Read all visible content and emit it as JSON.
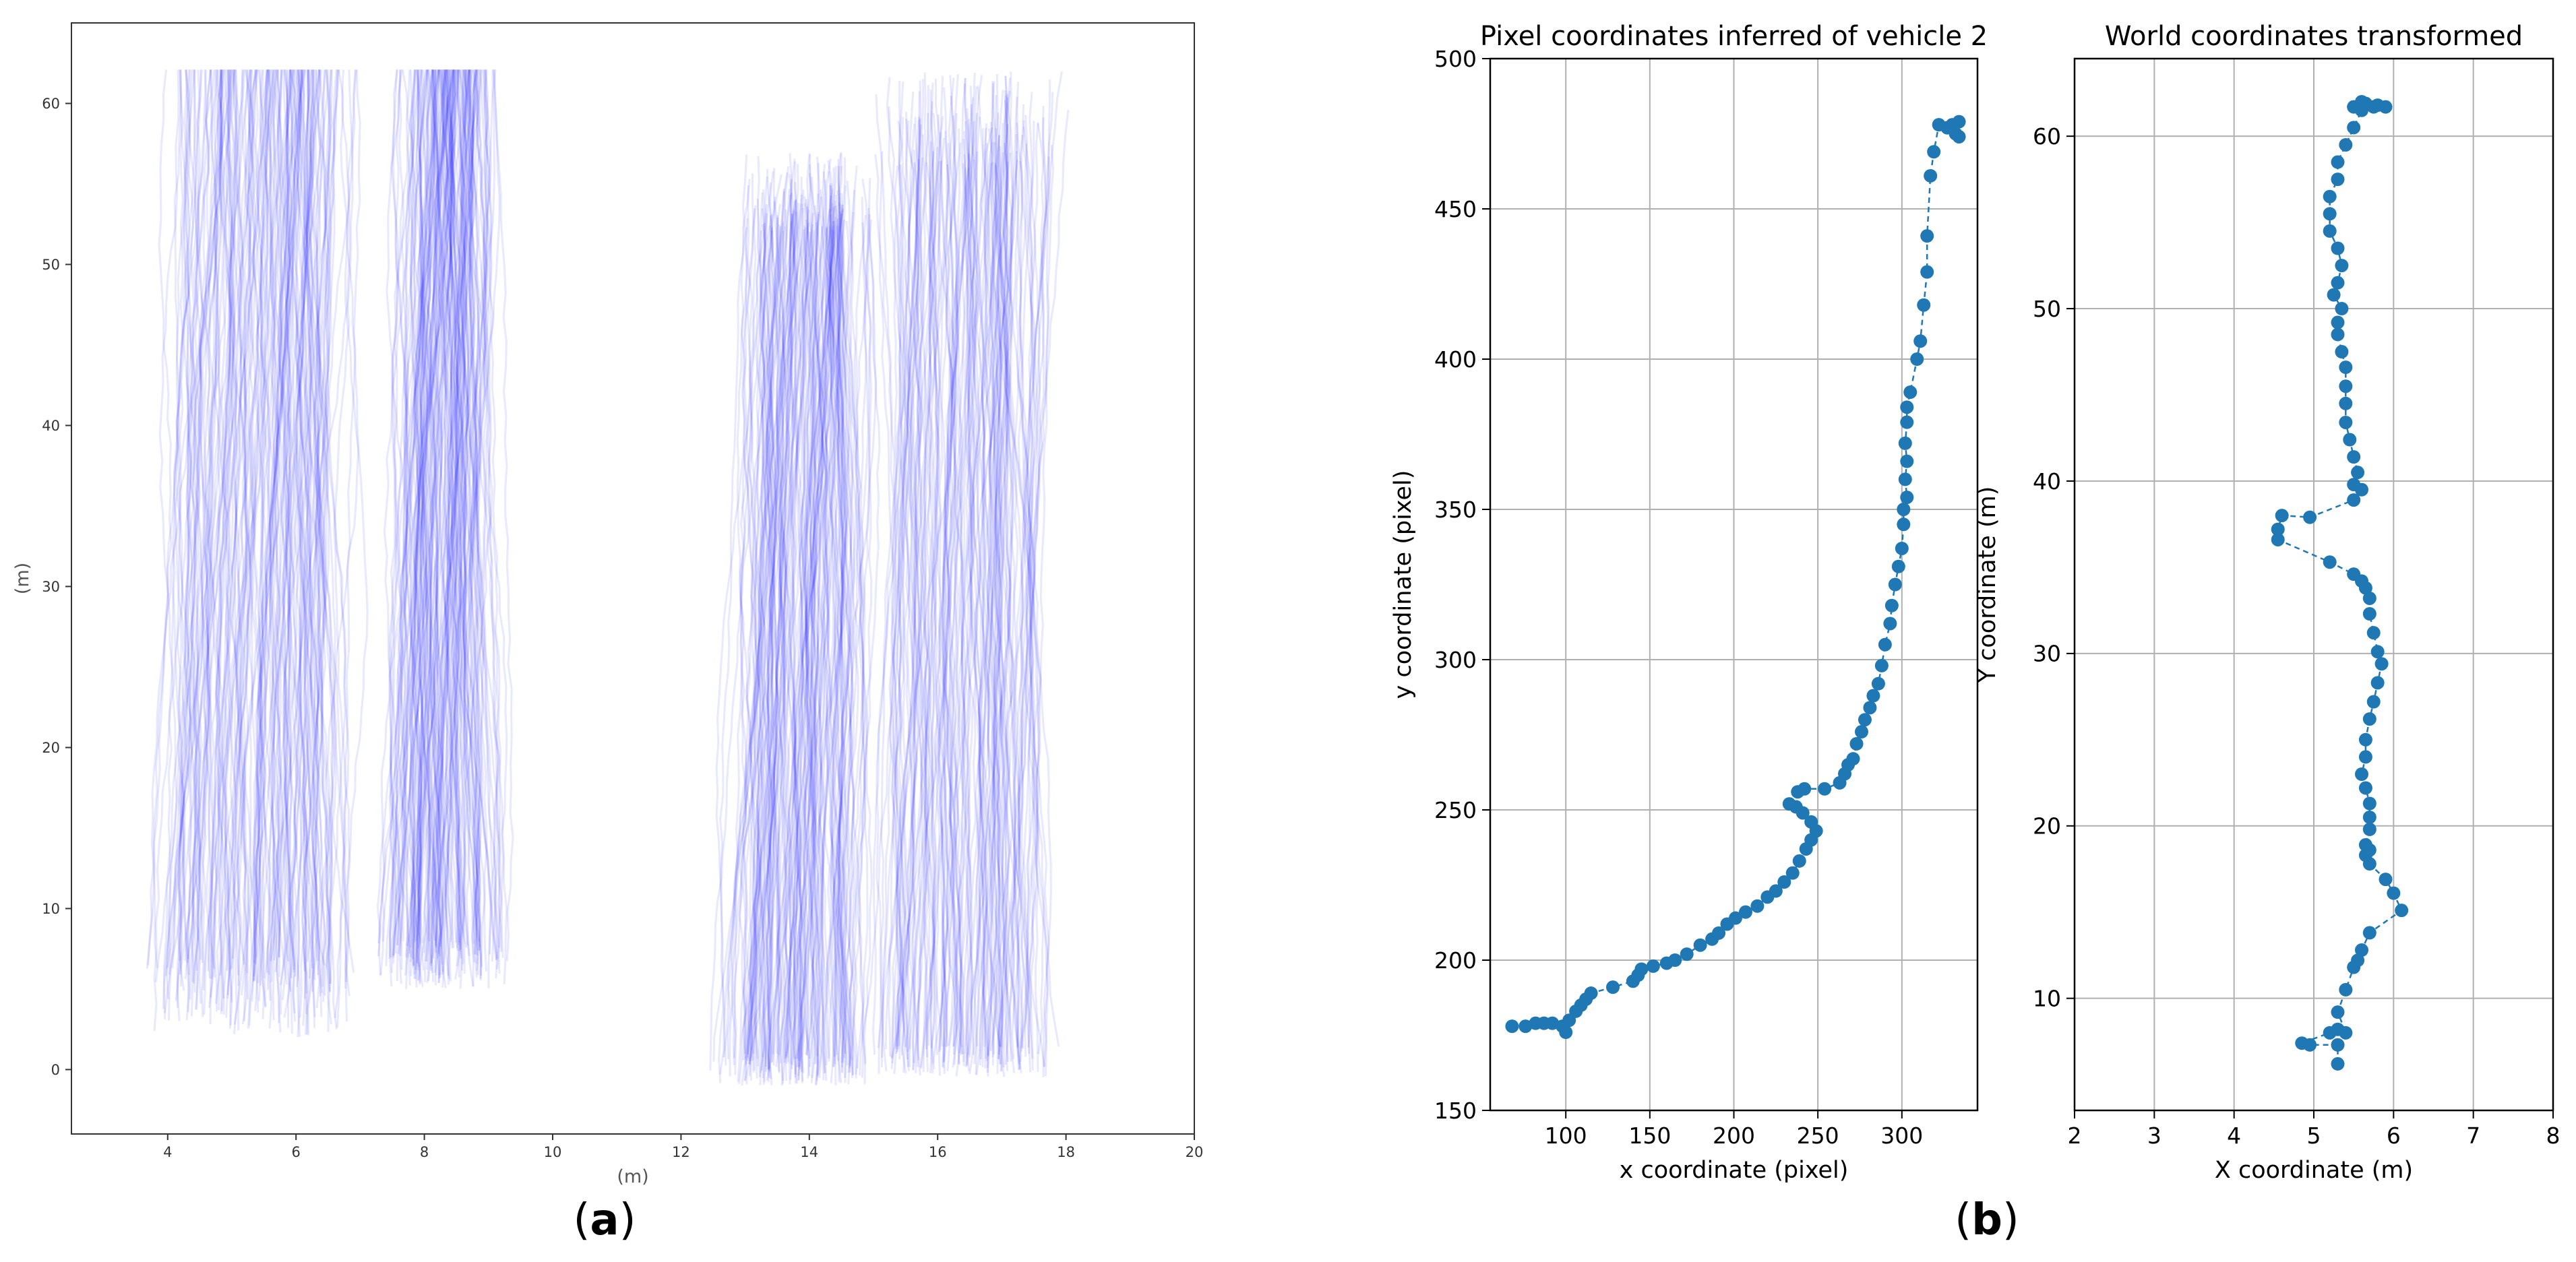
{
  "figure": {
    "panel_a_label": "a",
    "panel_b_label": "b"
  },
  "chart_data": [
    {
      "id": "a",
      "type": "line",
      "title": "",
      "xlabel": "(m)",
      "ylabel": "(m)",
      "xlim": [
        2.5,
        20
      ],
      "ylim": [
        -4,
        65
      ],
      "xticks": [
        4,
        6,
        8,
        10,
        12,
        14,
        16,
        18,
        20
      ],
      "yticks": [
        0,
        10,
        20,
        30,
        40,
        50,
        60
      ],
      "grid": false,
      "line_color": "#0000ff",
      "line_alpha": 0.09,
      "note": "dense bundle of vehicle trajectories in four lanes",
      "lanes": [
        {
          "name": "lane-1",
          "x_start_range": [
            3.6,
            6.9
          ],
          "y_start_range": [
            2,
            7
          ],
          "y_end": 62.1,
          "x_end_range": [
            4.0,
            7.0
          ],
          "count": 170
        },
        {
          "name": "lane-2",
          "x_start_range": [
            7.2,
            9.3
          ],
          "y_start_range": [
            5,
            8
          ],
          "y_end": 62.1,
          "x_end_range": [
            7.6,
            9.2
          ],
          "count": 150
        },
        {
          "name": "lane-3",
          "x_start_range": [
            12.5,
            15.0
          ],
          "y_start_range": [
            -1,
            1
          ],
          "y_end_range": [
            52,
            57
          ],
          "x_end_range": [
            12.9,
            15.1
          ],
          "count": 160
        },
        {
          "name": "lane-4",
          "x_start_range": [
            14.9,
            17.9
          ],
          "y_start_range": [
            -0.5,
            1.5
          ],
          "y_end_range": [
            56,
            62
          ],
          "x_end_range": [
            15.0,
            18.1
          ],
          "count": 150
        }
      ]
    },
    {
      "id": "b-pixel",
      "type": "scatter",
      "title": "Pixel coordinates inferred of vehicle 2",
      "xlabel": "x coordinate (pixel)",
      "ylabel": "y coordinate (pixel)",
      "xlim": [
        55,
        345
      ],
      "ylim": [
        150,
        500
      ],
      "xticks": [
        100,
        150,
        200,
        250,
        300
      ],
      "yticks": [
        150,
        200,
        250,
        300,
        350,
        400,
        450,
        500
      ],
      "grid": true,
      "color": "#1f77b4",
      "connect": "dashed",
      "points": [
        [
          68,
          178
        ],
        [
          76,
          178
        ],
        [
          82,
          179
        ],
        [
          87,
          179
        ],
        [
          92,
          179
        ],
        [
          98,
          178
        ],
        [
          100,
          176
        ],
        [
          102,
          180
        ],
        [
          106,
          183
        ],
        [
          109,
          185
        ],
        [
          112,
          187
        ],
        [
          115,
          189
        ],
        [
          128,
          191
        ],
        [
          140,
          193
        ],
        [
          143,
          195
        ],
        [
          145,
          197
        ],
        [
          152,
          198
        ],
        [
          160,
          199
        ],
        [
          165,
          200
        ],
        [
          172,
          202
        ],
        [
          180,
          205
        ],
        [
          187,
          207
        ],
        [
          191,
          209
        ],
        [
          196,
          212
        ],
        [
          201,
          214
        ],
        [
          207,
          216
        ],
        [
          214,
          218
        ],
        [
          220,
          221
        ],
        [
          225,
          223
        ],
        [
          230,
          226
        ],
        [
          235,
          229
        ],
        [
          239,
          233
        ],
        [
          243,
          237
        ],
        [
          246,
          240
        ],
        [
          249,
          243
        ],
        [
          246,
          246
        ],
        [
          241,
          249
        ],
        [
          237,
          251
        ],
        [
          233,
          252
        ],
        [
          238,
          256
        ],
        [
          242,
          257
        ],
        [
          254,
          257
        ],
        [
          263,
          259
        ],
        [
          266,
          262
        ],
        [
          268,
          265
        ],
        [
          271,
          267
        ],
        [
          273,
          272
        ],
        [
          276,
          276
        ],
        [
          278,
          280
        ],
        [
          281,
          284
        ],
        [
          283,
          288
        ],
        [
          286,
          292
        ],
        [
          288,
          298
        ],
        [
          290,
          305
        ],
        [
          293,
          312
        ],
        [
          294,
          318
        ],
        [
          296,
          325
        ],
        [
          298,
          331
        ],
        [
          300,
          337
        ],
        [
          301,
          345
        ],
        [
          301,
          350
        ],
        [
          303,
          354
        ],
        [
          302,
          360
        ],
        [
          303,
          366
        ],
        [
          302,
          372
        ],
        [
          303,
          379
        ],
        [
          303,
          384
        ],
        [
          305,
          389
        ],
        [
          309,
          400
        ],
        [
          311,
          406
        ],
        [
          313,
          418
        ],
        [
          315,
          429
        ],
        [
          315,
          441
        ],
        [
          317,
          461
        ],
        [
          319,
          469
        ],
        [
          322,
          478
        ],
        [
          327,
          477
        ],
        [
          330,
          478
        ],
        [
          334,
          479
        ],
        [
          332,
          475
        ],
        [
          334,
          474
        ]
      ]
    },
    {
      "id": "b-world",
      "type": "scatter",
      "title": "World coordinates transformed",
      "xlabel": "X coordinate (m)",
      "ylabel": "Y coordinate (m)",
      "xlim": [
        2,
        8
      ],
      "ylim": [
        3.5,
        64.5
      ],
      "xticks": [
        2,
        3,
        4,
        5,
        6,
        7,
        8
      ],
      "yticks": [
        10,
        20,
        30,
        40,
        50,
        60
      ],
      "grid": true,
      "color": "#1f77b4",
      "connect": "dashed",
      "points": [
        [
          5.3,
          6.2
        ],
        [
          5.3,
          7.3
        ],
        [
          4.95,
          7.3
        ],
        [
          4.85,
          7.4
        ],
        [
          5.2,
          8.0
        ],
        [
          5.3,
          8.2
        ],
        [
          5.4,
          8.0
        ],
        [
          5.3,
          9.2
        ],
        [
          5.4,
          10.5
        ],
        [
          5.5,
          11.8
        ],
        [
          5.55,
          12.2
        ],
        [
          5.6,
          12.8
        ],
        [
          5.7,
          13.8
        ],
        [
          6.1,
          15.1
        ],
        [
          6.0,
          16.1
        ],
        [
          5.9,
          16.9
        ],
        [
          5.7,
          17.8
        ],
        [
          5.65,
          18.3
        ],
        [
          5.7,
          18.6
        ],
        [
          5.65,
          18.9
        ],
        [
          5.7,
          19.8
        ],
        [
          5.7,
          20.5
        ],
        [
          5.7,
          21.3
        ],
        [
          5.65,
          22.2
        ],
        [
          5.6,
          23.0
        ],
        [
          5.65,
          24.0
        ],
        [
          5.65,
          25.0
        ],
        [
          5.7,
          26.2
        ],
        [
          5.75,
          27.2
        ],
        [
          5.8,
          28.3
        ],
        [
          5.85,
          29.4
        ],
        [
          5.8,
          30.1
        ],
        [
          5.75,
          31.2
        ],
        [
          5.7,
          32.3
        ],
        [
          5.7,
          33.2
        ],
        [
          5.65,
          33.8
        ],
        [
          5.6,
          34.2
        ],
        [
          5.5,
          34.6
        ],
        [
          5.2,
          35.3
        ],
        [
          4.55,
          36.6
        ],
        [
          4.55,
          37.2
        ],
        [
          4.6,
          38.0
        ],
        [
          4.95,
          37.9
        ],
        [
          5.5,
          38.9
        ],
        [
          5.6,
          39.5
        ],
        [
          5.5,
          39.8
        ],
        [
          5.55,
          40.5
        ],
        [
          5.5,
          41.4
        ],
        [
          5.45,
          42.4
        ],
        [
          5.4,
          43.4
        ],
        [
          5.4,
          44.5
        ],
        [
          5.4,
          45.5
        ],
        [
          5.4,
          46.6
        ],
        [
          5.35,
          47.5
        ],
        [
          5.3,
          48.5
        ],
        [
          5.3,
          49.2
        ],
        [
          5.35,
          50.0
        ],
        [
          5.25,
          50.8
        ],
        [
          5.3,
          51.5
        ],
        [
          5.35,
          52.5
        ],
        [
          5.3,
          53.5
        ],
        [
          5.2,
          54.5
        ],
        [
          5.2,
          55.5
        ],
        [
          5.2,
          56.5
        ],
        [
          5.3,
          57.5
        ],
        [
          5.3,
          58.5
        ],
        [
          5.4,
          59.5
        ],
        [
          5.5,
          60.5
        ],
        [
          5.6,
          61.5
        ],
        [
          5.65,
          61.9
        ],
        [
          5.75,
          61.7
        ],
        [
          5.8,
          61.8
        ],
        [
          5.9,
          61.7
        ],
        [
          5.5,
          61.7
        ],
        [
          5.6,
          62.0
        ]
      ]
    }
  ]
}
